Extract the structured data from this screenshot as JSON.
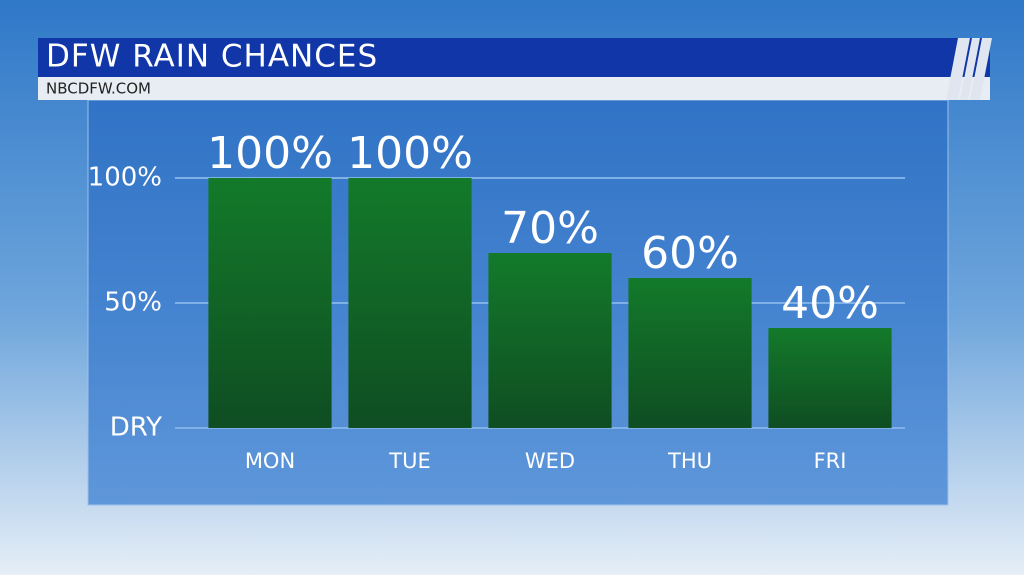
{
  "chart_data": {
    "type": "bar",
    "title": "DFW RAIN CHANCES",
    "subtitle": "NBCDFW.COM",
    "categories": [
      "MON",
      "TUE",
      "WED",
      "THU",
      "FRI"
    ],
    "values": [
      100,
      100,
      70,
      60,
      40
    ],
    "value_labels": [
      "100%",
      "100%",
      "70%",
      "60%",
      "40%"
    ],
    "color": "#137a2a",
    "ylim": [
      0,
      100
    ],
    "yticks": [
      {
        "value": 0,
        "label": "DRY"
      },
      {
        "value": 50,
        "label": "50%"
      },
      {
        "value": 100,
        "label": "100%"
      }
    ],
    "grid": true
  }
}
